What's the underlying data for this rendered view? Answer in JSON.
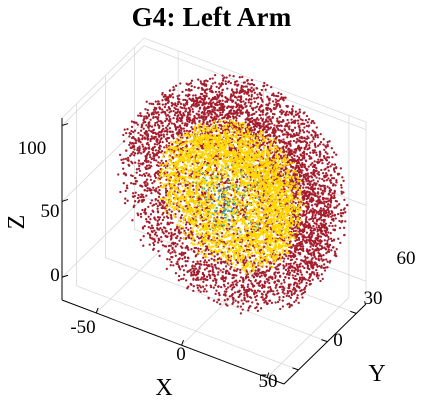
{
  "chart_data": {
    "type": "scatter",
    "title": "G4: Left Arm",
    "xlabel": "X",
    "ylabel": "Y",
    "zlabel": "Z",
    "xticks": [
      "-50",
      "0",
      "50"
    ],
    "yticks": [
      "0",
      "30",
      "60"
    ],
    "zticks": [
      "0",
      "50",
      "100"
    ],
    "xlim": [
      -70,
      60
    ],
    "ylim": [
      -15,
      70
    ],
    "zlim": [
      -15,
      105
    ],
    "grid": true,
    "view": "3d",
    "series": [
      {
        "color": "#a51d2d",
        "style": "dense trajectory cloud (outer shell)"
      },
      {
        "color": "#ffd700",
        "style": "dense trajectory cloud (inner shell)"
      },
      {
        "color": "#3aa0a0",
        "style": "sparse inner trajectories"
      }
    ]
  },
  "colors": {
    "outer": "#a51d2d",
    "inner": "#ffd700",
    "core": "#3aa0a0",
    "grid": "#d9d9d9",
    "axis": "#000000"
  }
}
